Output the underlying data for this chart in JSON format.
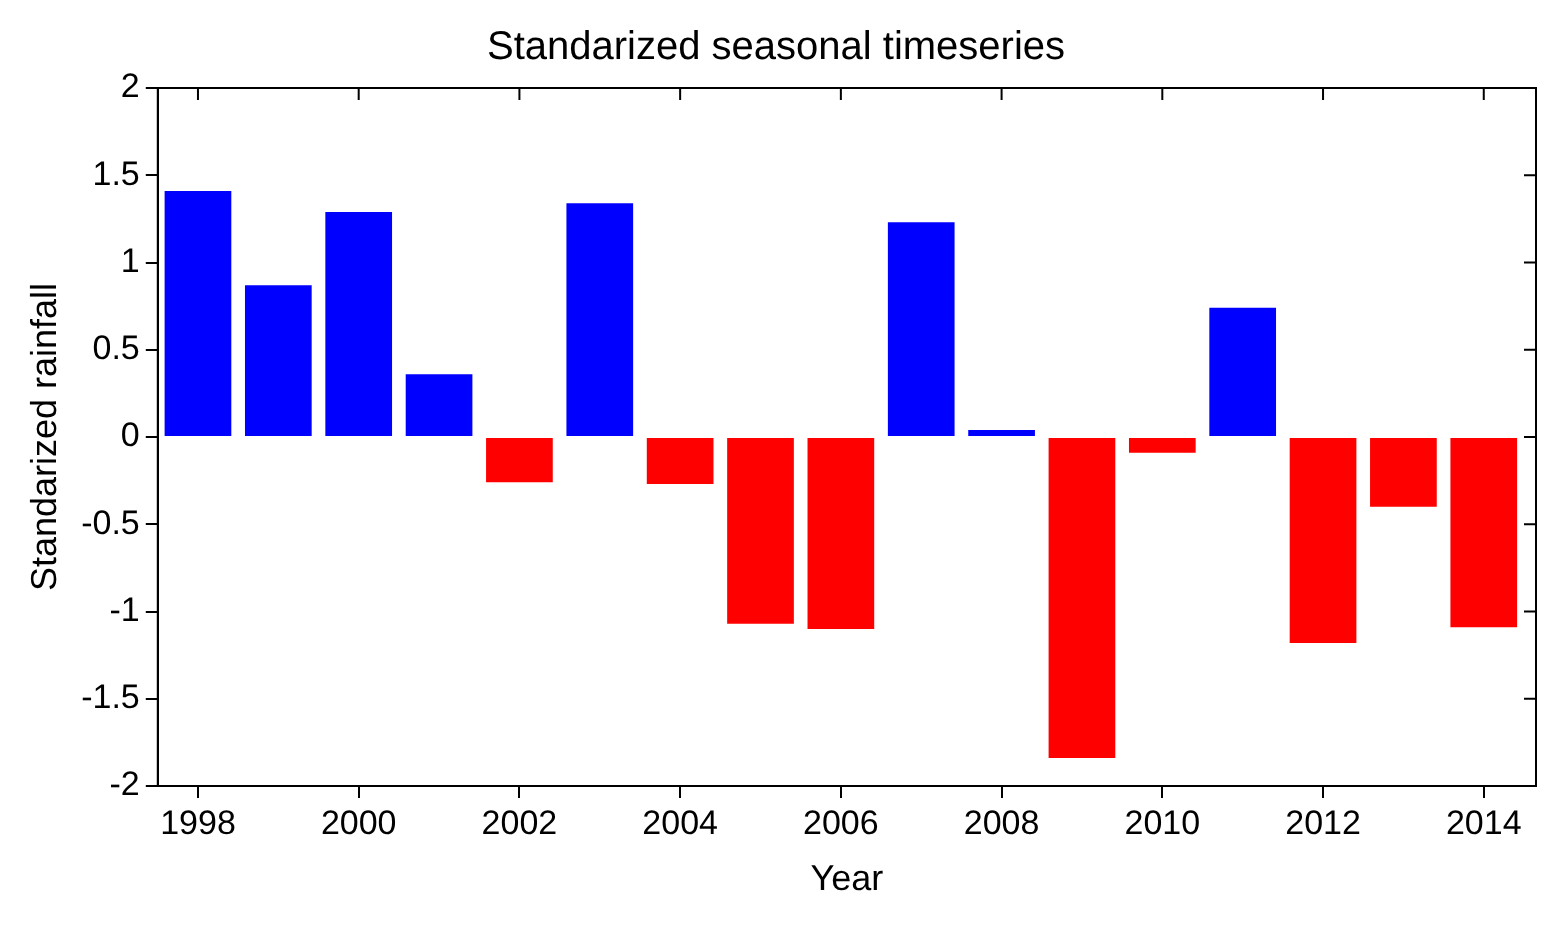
{
  "chart_data": {
    "type": "bar",
    "title": "Standarized seasonal timeseries",
    "xlabel": "Year",
    "ylabel": "Standarized rainfall",
    "x": [
      1998,
      1999,
      2000,
      2001,
      2002,
      2003,
      2004,
      2005,
      2006,
      2007,
      2008,
      2009,
      2010,
      2011,
      2012,
      2013,
      2014
    ],
    "values": [
      1.41,
      0.87,
      1.29,
      0.36,
      -0.26,
      1.34,
      -0.27,
      -1.07,
      -1.1,
      1.23,
      0.04,
      -1.84,
      -0.09,
      0.74,
      -1.18,
      -0.4,
      -1.09
    ],
    "colors": [
      "#0000ff",
      "#0000ff",
      "#0000ff",
      "#0000ff",
      "#ff0000",
      "#0000ff",
      "#ff0000",
      "#ff0000",
      "#ff0000",
      "#0000ff",
      "#0000ff",
      "#ff0000",
      "#ff0000",
      "#0000ff",
      "#ff0000",
      "#ff0000",
      "#ff0000"
    ],
    "xlim": [
      1997.5,
      2014.65
    ],
    "xticks": [
      1998,
      2000,
      2002,
      2004,
      2006,
      2008,
      2010,
      2012,
      2014
    ],
    "ylim": [
      -2,
      2
    ],
    "yticks": [
      -2,
      -1.5,
      -1,
      -0.5,
      0,
      0.5,
      1,
      1.5,
      2
    ],
    "grid": false,
    "legend": false
  }
}
